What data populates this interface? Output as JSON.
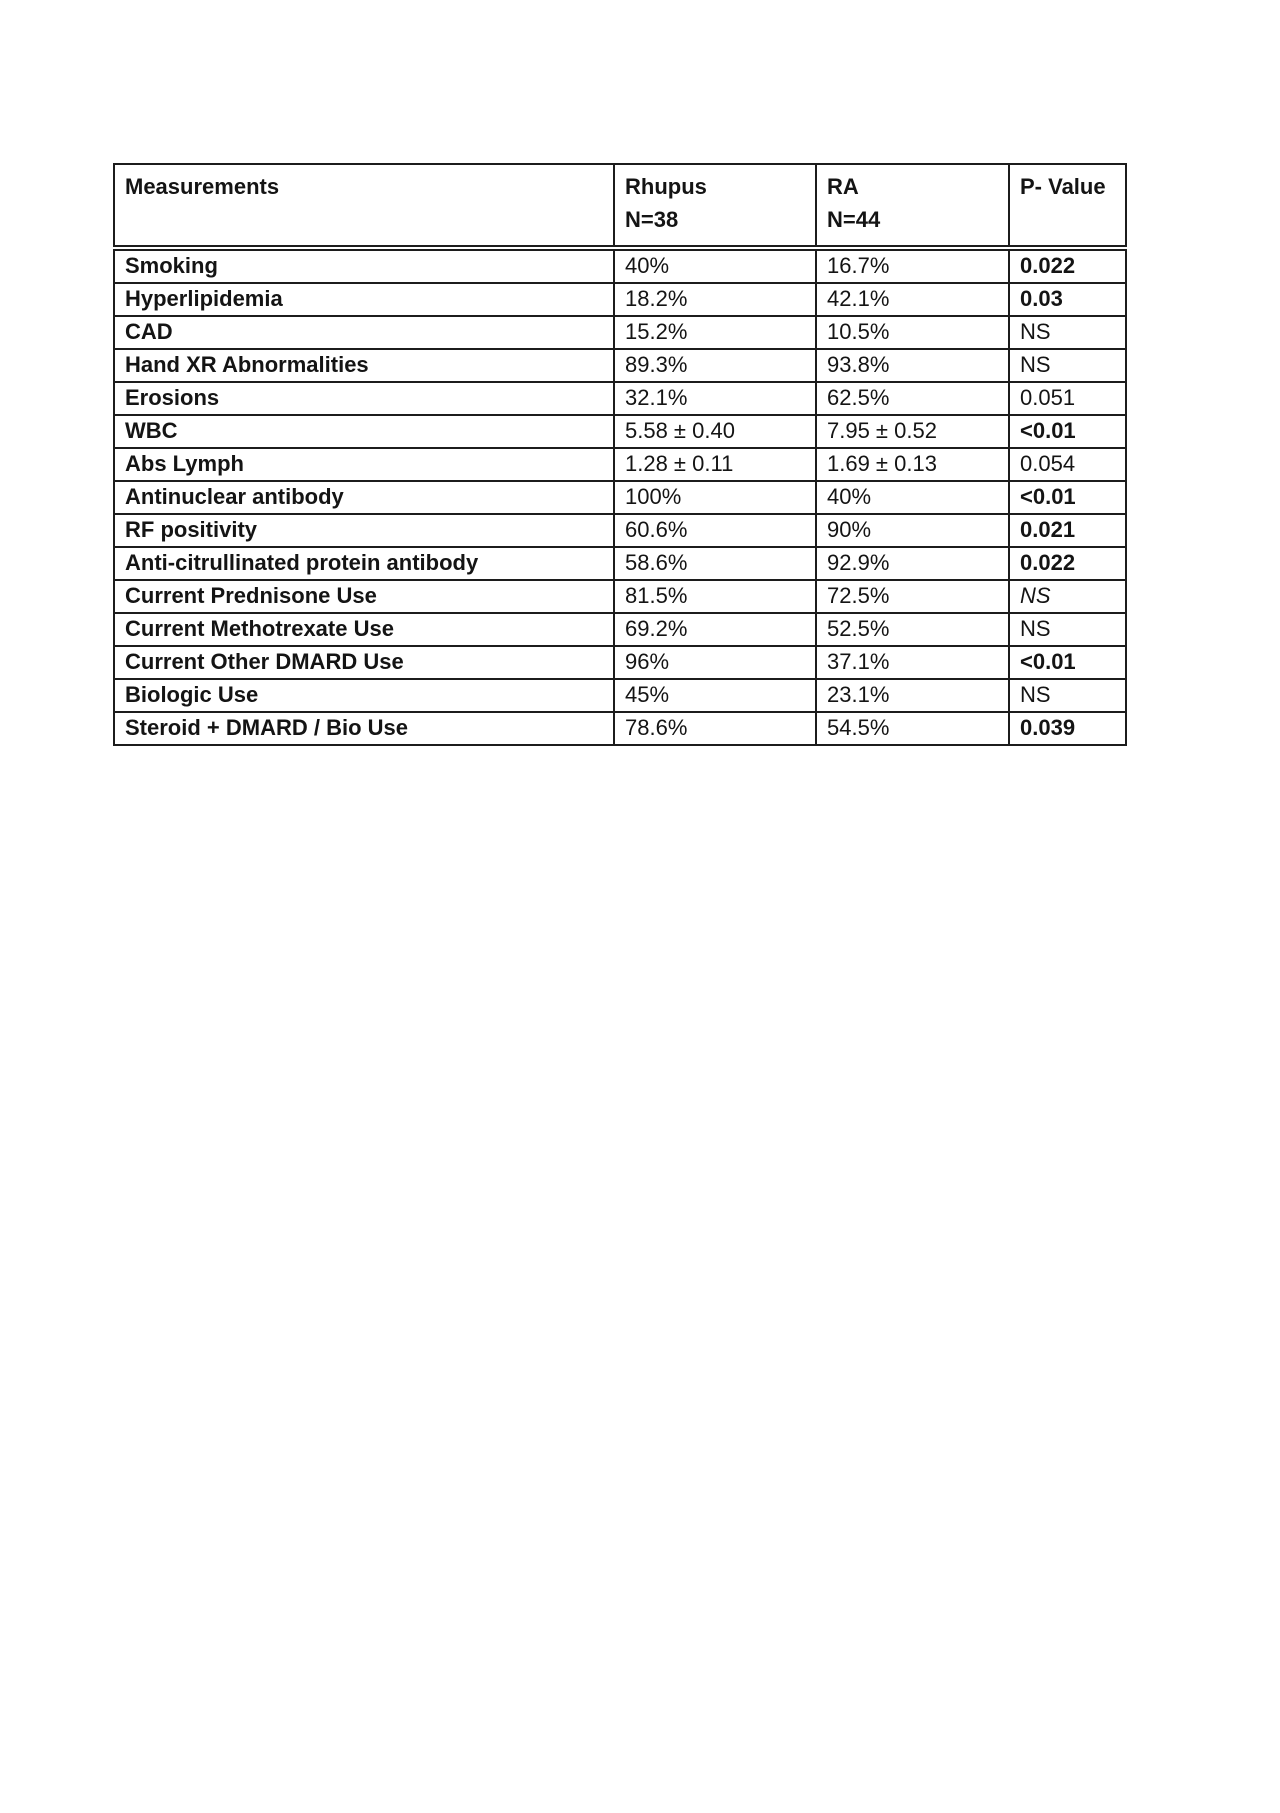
{
  "colors": {
    "ink": "#1c1c1c",
    "background": "#ffffff"
  },
  "table": {
    "columns": [
      {
        "title": "Measurements",
        "subtitle": ""
      },
      {
        "title": "Rhupus",
        "subtitle": "N=38"
      },
      {
        "title": "RA",
        "subtitle": "N=44"
      },
      {
        "title": "P- Value",
        "subtitle": ""
      }
    ],
    "rows": [
      {
        "label": "Smoking",
        "rhupus": "40%",
        "ra": "16.7%",
        "p": "0.022",
        "p_class": "pv bold"
      },
      {
        "label": "Hyperlipidemia",
        "rhupus": "18.2%",
        "ra": "42.1%",
        "p": "0.03",
        "p_class": "pv bold"
      },
      {
        "label": "CAD",
        "rhupus": "15.2%",
        "ra": "10.5%",
        "p": "NS",
        "p_class": "pv"
      },
      {
        "label": "Hand XR Abnormalities",
        "rhupus": "89.3%",
        "ra": "93.8%",
        "p": "NS",
        "p_class": "pv"
      },
      {
        "label": "Erosions",
        "rhupus": "32.1%",
        "ra": "62.5%",
        "p": "0.051",
        "p_class": "pv"
      },
      {
        "label": "WBC",
        "rhupus": "5.58 ± 0.40",
        "ra": "7.95 ± 0.52",
        "p": "<0.01",
        "p_class": "pv bold"
      },
      {
        "label": "Abs Lymph",
        "rhupus": "1.28 ± 0.11",
        "ra": "1.69 ± 0.13",
        "p": "0.054",
        "p_class": "pv"
      },
      {
        "label": "Antinuclear antibody",
        "rhupus": "100%",
        "ra": "40%",
        "p": "<0.01",
        "p_class": "pv bold"
      },
      {
        "label": "RF positivity",
        "rhupus": "60.6%",
        "ra": "90%",
        "p": "0.021",
        "p_class": "pv bold"
      },
      {
        "label": "Anti-citrullinated protein antibody",
        "rhupus": "58.6%",
        "ra": "92.9%",
        "p": "0.022",
        "p_class": "pv bold"
      },
      {
        "label": "Current Prednisone Use",
        "rhupus": "81.5%",
        "ra": "72.5%",
        "p": "NS",
        "p_class": "pv italic"
      },
      {
        "label": "Current Methotrexate Use",
        "rhupus": "69.2%",
        "ra": "52.5%",
        "p": "NS",
        "p_class": "pv"
      },
      {
        "label": "Current Other DMARD Use",
        "rhupus": "96%",
        "ra": "37.1%",
        "p": "<0.01",
        "p_class": "pv bold"
      },
      {
        "label": "Biologic Use",
        "rhupus": "45%",
        "ra": "23.1%",
        "p": "NS",
        "p_class": "pv"
      },
      {
        "label": "Steroid + DMARD / Bio Use",
        "rhupus": "78.6%",
        "ra": "54.5%",
        "p": "0.039",
        "p_class": "pv bold"
      }
    ]
  }
}
